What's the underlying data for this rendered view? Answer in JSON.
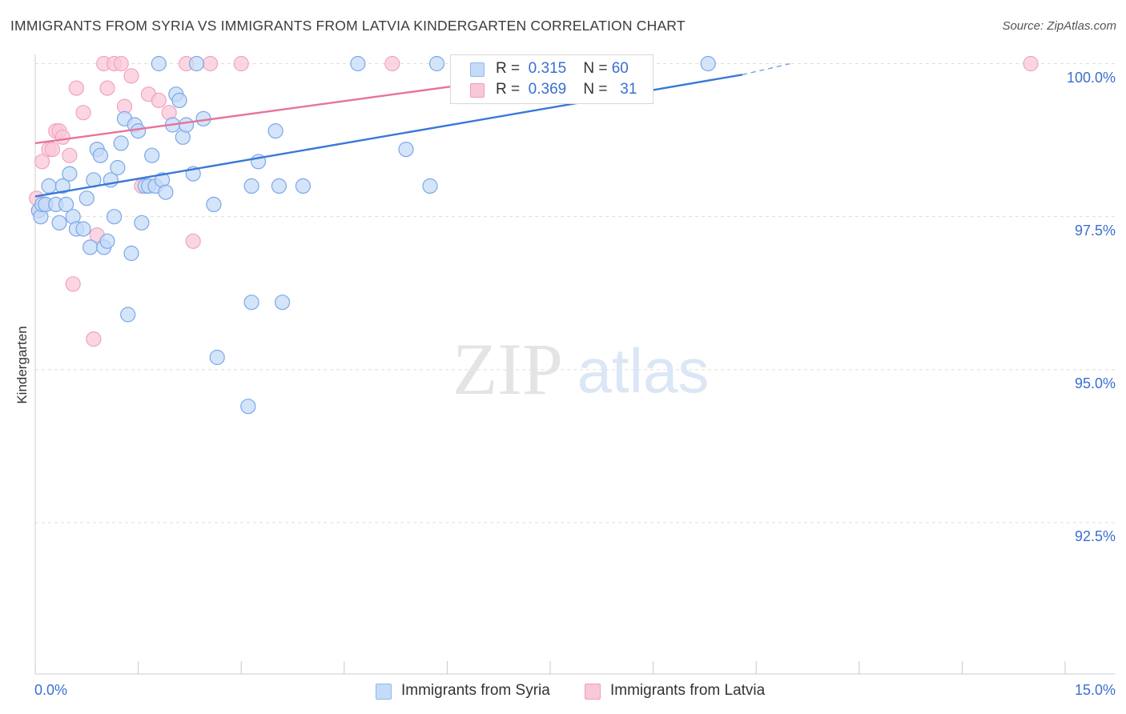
{
  "header": {
    "title": "IMMIGRANTS FROM SYRIA VS IMMIGRANTS FROM LATVIA KINDERGARTEN CORRELATION CHART",
    "source_label": "Source: ZipAtlas.com"
  },
  "watermark": {
    "zip": "ZIP",
    "atlas": "atlas"
  },
  "stats": [
    {
      "r_label": "R =",
      "r_value": "0.315",
      "n_label": "N =",
      "n_value": "60",
      "color": "#8fb8f0",
      "fill": "#c5dbf7"
    },
    {
      "r_label": "R =",
      "r_value": "0.369",
      "n_label": "N =",
      "n_value": "31",
      "color": "#f29ab8",
      "fill": "#f9c8d8"
    }
  ],
  "legend": [
    {
      "label": "Immigrants from Syria",
      "color": "#8fb8f0",
      "fill": "#c5dbf7"
    },
    {
      "label": "Immigrants from Latvia",
      "color": "#f29ab8",
      "fill": "#f9c8d8"
    }
  ],
  "axes": {
    "ylabel": "Kindergarten",
    "x_min_label": "0.0%",
    "x_max_label": "15.0%",
    "y_tick_labels": [
      "100.0%",
      "97.5%",
      "95.0%",
      "92.5%"
    ]
  },
  "chart_data": {
    "type": "scatter",
    "xlabel": "",
    "ylabel": "Kindergarten",
    "xlim": [
      0,
      15
    ],
    "ylim": [
      90.2,
      100.45
    ],
    "y_ticks": [
      100.0,
      97.5,
      95.0,
      92.5
    ],
    "x_ticks_labeled": [
      0,
      15
    ],
    "grid": true,
    "legend_position": "bottom-center",
    "series": [
      {
        "name": "Immigrants from Syria",
        "color": "#3a78d6",
        "fill": "#c5dbf7",
        "stroke": "#7aa8e8",
        "trend": {
          "x0": 0.0,
          "y0": 97.83,
          "x1": 10.3,
          "y1": 99.82,
          "dash_to_x": 11.0,
          "dash_to_y": 100.0
        },
        "points": [
          [
            0.05,
            97.6
          ],
          [
            0.08,
            97.5
          ],
          [
            0.1,
            97.7
          ],
          [
            0.15,
            97.7
          ],
          [
            0.2,
            98.0
          ],
          [
            0.3,
            97.7
          ],
          [
            0.35,
            97.4
          ],
          [
            0.4,
            98.0
          ],
          [
            0.45,
            97.7
          ],
          [
            0.5,
            98.2
          ],
          [
            0.55,
            97.5
          ],
          [
            0.6,
            97.3
          ],
          [
            0.7,
            97.3
          ],
          [
            0.75,
            97.8
          ],
          [
            0.8,
            97.0
          ],
          [
            0.85,
            98.1
          ],
          [
            0.9,
            98.6
          ],
          [
            0.95,
            98.5
          ],
          [
            1.0,
            97.0
          ],
          [
            1.05,
            97.1
          ],
          [
            1.1,
            98.1
          ],
          [
            1.15,
            97.5
          ],
          [
            1.2,
            98.3
          ],
          [
            1.25,
            98.7
          ],
          [
            1.3,
            99.1
          ],
          [
            1.35,
            95.9
          ],
          [
            1.4,
            96.9
          ],
          [
            1.45,
            99.0
          ],
          [
            1.5,
            98.9
          ],
          [
            1.55,
            97.4
          ],
          [
            1.6,
            98.0
          ],
          [
            1.65,
            98.0
          ],
          [
            1.7,
            98.5
          ],
          [
            1.75,
            98.0
          ],
          [
            1.8,
            100.0
          ],
          [
            1.85,
            98.1
          ],
          [
            1.9,
            97.9
          ],
          [
            2.0,
            99.0
          ],
          [
            2.05,
            99.5
          ],
          [
            2.1,
            99.4
          ],
          [
            2.15,
            98.8
          ],
          [
            2.2,
            99.0
          ],
          [
            2.3,
            98.2
          ],
          [
            2.35,
            100.0
          ],
          [
            2.45,
            99.1
          ],
          [
            2.6,
            97.7
          ],
          [
            2.65,
            95.2
          ],
          [
            3.1,
            94.4
          ],
          [
            3.25,
            98.4
          ],
          [
            3.5,
            98.9
          ],
          [
            3.15,
            96.1
          ],
          [
            3.15,
            98.0
          ],
          [
            3.55,
            98.0
          ],
          [
            3.6,
            96.1
          ],
          [
            3.9,
            98.0
          ],
          [
            4.7,
            100.0
          ],
          [
            5.4,
            98.6
          ],
          [
            5.75,
            98.0
          ],
          [
            5.85,
            100.0
          ],
          [
            9.8,
            100.0
          ]
        ]
      },
      {
        "name": "Immigrants from Latvia",
        "color": "#e8739c",
        "fill": "#f9c8d8",
        "stroke": "#f0a3bf",
        "trend": {
          "x0": 0.0,
          "y0": 98.7,
          "x1": 8.5,
          "y1": 100.0
        },
        "points": [
          [
            0.02,
            97.8
          ],
          [
            0.05,
            97.6
          ],
          [
            0.1,
            98.4
          ],
          [
            0.15,
            97.7
          ],
          [
            0.2,
            98.6
          ],
          [
            0.25,
            98.6
          ],
          [
            0.3,
            98.9
          ],
          [
            0.35,
            98.9
          ],
          [
            0.4,
            98.8
          ],
          [
            0.5,
            98.5
          ],
          [
            0.55,
            96.4
          ],
          [
            0.6,
            99.6
          ],
          [
            0.7,
            99.2
          ],
          [
            0.85,
            95.5
          ],
          [
            0.9,
            97.2
          ],
          [
            1.0,
            100.0
          ],
          [
            1.05,
            99.6
          ],
          [
            1.15,
            100.0
          ],
          [
            1.25,
            100.0
          ],
          [
            1.3,
            99.3
          ],
          [
            1.4,
            99.8
          ],
          [
            1.55,
            98.0
          ],
          [
            1.65,
            99.5
          ],
          [
            1.8,
            99.4
          ],
          [
            1.95,
            99.2
          ],
          [
            2.2,
            100.0
          ],
          [
            2.3,
            97.1
          ],
          [
            2.55,
            100.0
          ],
          [
            3.0,
            100.0
          ],
          [
            5.2,
            100.0
          ],
          [
            14.5,
            100.0
          ]
        ]
      }
    ]
  }
}
